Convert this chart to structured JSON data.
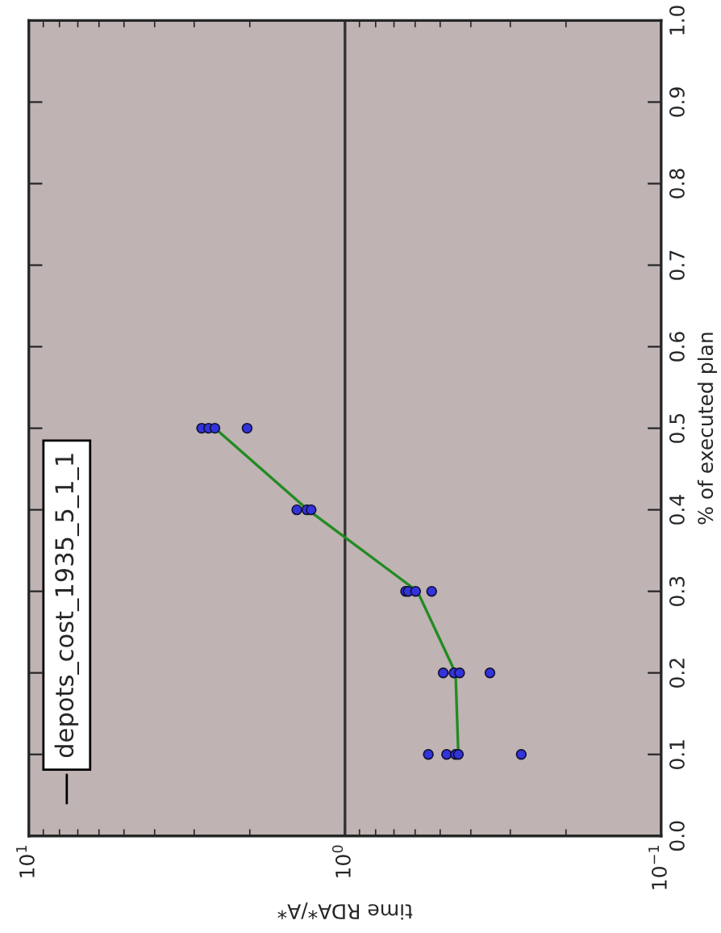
{
  "chart_data": {
    "type": "scatter",
    "xlabel": "time RDA*/A*",
    "ylabel": "% of executed plan",
    "log": "x",
    "xlim": [
      10,
      0.1
    ],
    "xticks": [
      {
        "value": 10,
        "label": "10$^{1}$"
      },
      {
        "value": 1,
        "label": "10$^{0}$"
      },
      {
        "value": 0.1,
        "label": "10$^{−1}$"
      }
    ],
    "ylim": [
      0.0,
      1.0
    ],
    "yticks": [
      {
        "value": 0.0,
        "label": "0.0"
      },
      {
        "value": 0.1,
        "label": "0.1"
      },
      {
        "value": 0.2,
        "label": "0.2"
      },
      {
        "value": 0.3,
        "label": "0.3"
      },
      {
        "value": 0.4,
        "label": "0.4"
      },
      {
        "value": 0.5,
        "label": "0.5"
      },
      {
        "value": 0.6,
        "label": "0.6"
      },
      {
        "value": 0.7,
        "label": "0.7"
      },
      {
        "value": 0.8,
        "label": "0.8"
      },
      {
        "value": 0.9,
        "label": "0.9"
      },
      {
        "value": 1.0,
        "label": "1.0"
      }
    ],
    "series": [
      {
        "color": "#3333dd",
        "marker": "circle",
        "x": [
          0.545,
          0.477,
          0.447,
          0.438,
          0.277,
          0.489,
          0.452,
          0.434,
          0.348,
          0.643,
          0.631,
          0.598,
          0.532,
          1.42,
          1.32,
          1.28,
          2.84,
          2.7,
          2.58,
          2.04
        ],
        "values": [
          0.1,
          0.1,
          0.1,
          0.1,
          0.1,
          0.2,
          0.2,
          0.2,
          0.2,
          0.3,
          0.3,
          0.3,
          0.3,
          0.4,
          0.4,
          0.4,
          0.5,
          0.5,
          0.5,
          0.5
        ]
      },
      {
        "type": "line",
        "name": "depots_cost_1935_5_1_1",
        "color": "#228b22",
        "marker": "none",
        "line_style": "solid",
        "x": [
          0.438,
          0.447,
          0.59,
          1.31,
          2.58
        ],
        "values": [
          0.1,
          0.2,
          0.3,
          0.4,
          0.5
        ]
      }
    ],
    "ref_lines": [
      {
        "axis": "x",
        "value": 1,
        "color": "#333333",
        "line_style": "solid"
      }
    ],
    "legend": "bottom left",
    "grid": false
  }
}
